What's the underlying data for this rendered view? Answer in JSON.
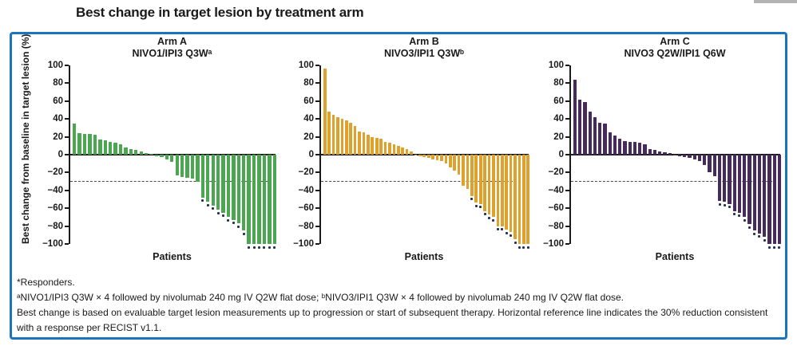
{
  "page": {
    "title": "Best change in target lesion by treatment arm"
  },
  "figure": {
    "border_color": "#1b75bc",
    "footnotes": [
      "*Responders.",
      "ᵃNIVO1/IPI3 Q3W × 4 followed by nivolumab 240 mg IV Q2W flat dose; ᵇNIVO3/IPI1 Q3W × 4 followed by nivolumab 240 mg IV Q2W flat dose.",
      "Best change is based on evaluable target lesion measurements up to progression or start of subsequent therapy. Horizontal reference line indicates the 30% reduction consistent with a response per RECIST v1.1."
    ]
  },
  "chart_data": {
    "type": "bar",
    "subtype": "waterfall",
    "title": "Best change in target lesion by treatment arm",
    "ylabel": "Best change from baseline in target lesion (%)",
    "xlabel": "Patients",
    "ylim": [
      -100,
      100
    ],
    "yticks": [
      100,
      80,
      60,
      40,
      20,
      0,
      -20,
      -40,
      -60,
      -80,
      -100
    ],
    "reference_line": -30,
    "reference_line_style": "dashed",
    "grid": false,
    "asterisk_meaning": "Responders",
    "panels": [
      {
        "name": "Arm A",
        "regimen": "NIVO1/IPI3 Q3Wᵃ",
        "color": "#4aa64f",
        "values": [
          35,
          24,
          23,
          23,
          22,
          17,
          16,
          14,
          13,
          12,
          8,
          6,
          5,
          4,
          2,
          1,
          -2,
          -3,
          -5,
          -8,
          -23,
          -25,
          -26,
          -27,
          -30,
          -48,
          -53,
          -57,
          -62,
          -65,
          -70,
          -73,
          -77,
          -85,
          -100,
          -100,
          -100,
          -100,
          -100,
          -100
        ],
        "responder_indices": [
          25,
          26,
          27,
          28,
          29,
          30,
          31,
          32,
          33,
          34,
          35,
          36,
          37,
          38,
          39
        ]
      },
      {
        "name": "Arm B",
        "regimen": "NIVO3/IPI1 Q3Wᵇ",
        "color": "#dfa12b",
        "values": [
          96,
          48,
          45,
          42,
          40,
          38,
          36,
          32,
          26,
          25,
          22,
          20,
          19,
          18,
          14,
          13,
          12,
          10,
          8,
          6,
          4,
          -1,
          -2,
          -3,
          -4,
          -5,
          -6,
          -7,
          -10,
          -14,
          -18,
          -22,
          -35,
          -38,
          -46,
          -54,
          -55,
          -63,
          -67,
          -70,
          -80,
          -80,
          -84,
          -87,
          -95,
          -100,
          -100,
          -100
        ],
        "responder_indices": [
          34,
          35,
          36,
          37,
          38,
          39,
          40,
          41,
          42,
          43,
          44,
          45,
          46,
          47
        ]
      },
      {
        "name": "Arm C",
        "regimen": "NIVO3 Q2W/IPI1 Q6W",
        "color": "#472a5c",
        "values": [
          84,
          62,
          59,
          48,
          42,
          36,
          35,
          25,
          21,
          18,
          15,
          14,
          14,
          13,
          12,
          6,
          5,
          4,
          3,
          2,
          -1,
          -2,
          -3,
          -4,
          -5,
          -7,
          -12,
          -20,
          -24,
          -52,
          -53,
          -55,
          -63,
          -65,
          -70,
          -78,
          -85,
          -88,
          -92,
          -100,
          -100,
          -100
        ],
        "responder_indices": [
          29,
          30,
          31,
          32,
          33,
          34,
          35,
          36,
          37,
          38,
          39,
          40,
          41
        ]
      }
    ]
  }
}
